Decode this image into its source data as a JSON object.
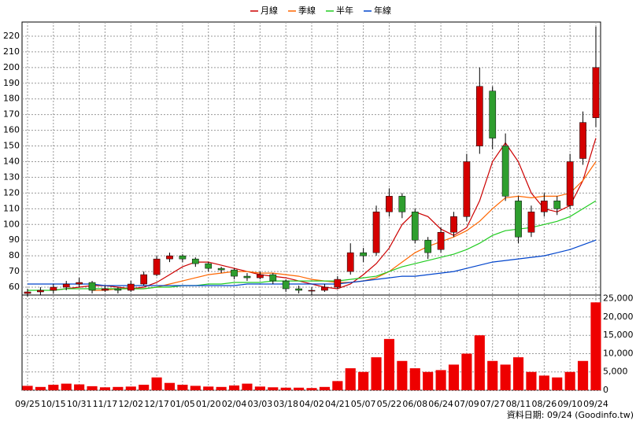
{
  "chart_data": [
    {
      "type": "candlestick",
      "categories": [
        "09/25",
        null,
        "10/15",
        null,
        "10/31",
        null,
        "11/17",
        null,
        "12/02",
        null,
        "12/17",
        null,
        "01/05",
        null,
        "01/20",
        null,
        "02/04",
        null,
        "03/03",
        null,
        "03/18",
        null,
        "04/02",
        null,
        "04/21",
        null,
        "05/07",
        null,
        "05/22",
        null,
        "06/08",
        null,
        "06/24",
        null,
        "07/09",
        null,
        "07/27",
        null,
        "08/11",
        null,
        "08/26",
        null,
        "09/10",
        null,
        "09/24"
      ],
      "open": [
        56,
        57,
        58,
        60,
        62,
        63,
        58,
        59,
        58,
        62,
        68,
        78,
        80,
        78,
        75,
        72,
        71,
        67,
        66,
        68,
        64,
        59,
        58,
        58,
        60,
        70,
        82,
        82,
        108,
        118,
        108,
        90,
        84,
        95,
        105,
        150,
        185,
        150,
        115,
        95,
        108,
        115,
        112,
        142,
        168
      ],
      "high": [
        59,
        60,
        62,
        64,
        66,
        64,
        61,
        60,
        64,
        70,
        80,
        82,
        81,
        79,
        76,
        73,
        72,
        69,
        70,
        69,
        65,
        61,
        60,
        62,
        67,
        88,
        85,
        112,
        123,
        120,
        110,
        92,
        98,
        108,
        145,
        200,
        188,
        158,
        118,
        112,
        120,
        118,
        145,
        172,
        226
      ],
      "low": [
        54,
        55,
        56,
        58,
        60,
        56,
        57,
        56,
        57,
        61,
        67,
        76,
        76,
        73,
        70,
        69,
        65,
        64,
        65,
        62,
        57,
        56,
        55,
        57,
        59,
        68,
        76,
        80,
        105,
        104,
        88,
        78,
        82,
        92,
        102,
        145,
        148,
        115,
        88,
        92,
        105,
        106,
        110,
        138,
        162
      ],
      "close": [
        57,
        58,
        60,
        62,
        63,
        58,
        59,
        58,
        62,
        68,
        78,
        80,
        78,
        75,
        72,
        71,
        67,
        66,
        68,
        64,
        59,
        58,
        58,
        60,
        65,
        82,
        80,
        108,
        118,
        108,
        90,
        82,
        95,
        105,
        140,
        188,
        155,
        118,
        92,
        108,
        115,
        110,
        140,
        165,
        200
      ],
      "up_color": "#d40000",
      "down_color": "#2e9e2e",
      "series": [
        {
          "name": "月線",
          "color": "#cc0000",
          "values": [
            null,
            null,
            58,
            59,
            60,
            61,
            61,
            60,
            59,
            60,
            63,
            68,
            73,
            76,
            76,
            74,
            72,
            70,
            68,
            67,
            66,
            64,
            62,
            60,
            59,
            62,
            68,
            75,
            85,
            100,
            108,
            105,
            97,
            93,
            98,
            115,
            140,
            152,
            140,
            120,
            110,
            108,
            112,
            128,
            155
          ]
        },
        {
          "name": "季線",
          "color": "#ff6600",
          "values": [
            null,
            null,
            null,
            null,
            null,
            58,
            58,
            59,
            59,
            59,
            60,
            62,
            64,
            66,
            68,
            69,
            70,
            70,
            69,
            69,
            68,
            67,
            65,
            64,
            63,
            63,
            64,
            66,
            70,
            76,
            82,
            86,
            89,
            92,
            96,
            102,
            110,
            117,
            118,
            117,
            118,
            118,
            120,
            128,
            140
          ]
        },
        {
          "name": "半年",
          "color": "#22cc22",
          "values": [
            58,
            58,
            58,
            59,
            59,
            59,
            59,
            59,
            59,
            59,
            60,
            60,
            61,
            61,
            62,
            62,
            63,
            63,
            63,
            64,
            64,
            64,
            64,
            64,
            64,
            65,
            66,
            67,
            70,
            73,
            75,
            77,
            79,
            81,
            84,
            88,
            93,
            96,
            97,
            98,
            100,
            102,
            105,
            110,
            115
          ]
        },
        {
          "name": "年線",
          "color": "#0044cc",
          "values": [
            62,
            62,
            62,
            62,
            62,
            62,
            61,
            61,
            61,
            61,
            61,
            61,
            61,
            61,
            61,
            61,
            61,
            62,
            62,
            62,
            62,
            62,
            62,
            62,
            62,
            63,
            64,
            65,
            66,
            67,
            67,
            68,
            69,
            70,
            72,
            74,
            76,
            77,
            78,
            79,
            80,
            82,
            84,
            87,
            90
          ]
        }
      ],
      "ylim": [
        55,
        229
      ],
      "yticks": [
        60,
        70,
        80,
        90,
        100,
        110,
        120,
        130,
        140,
        150,
        160,
        170,
        180,
        190,
        200,
        210,
        220
      ],
      "grid": true
    },
    {
      "type": "bar",
      "color": "#ee0000",
      "values": [
        1200,
        900,
        1500,
        1800,
        1600,
        1100,
        800,
        900,
        1000,
        1500,
        3500,
        2000,
        1500,
        1200,
        1000,
        900,
        1300,
        1800,
        1000,
        800,
        700,
        700,
        600,
        900,
        2500,
        6000,
        5000,
        9000,
        14000,
        8000,
        6000,
        5000,
        5500,
        7000,
        10000,
        15000,
        8000,
        7000,
        9000,
        5000,
        4000,
        3500,
        5000,
        8000,
        24000
      ],
      "ylim": [
        0,
        26000
      ],
      "yticks": [
        0,
        {
          "value": 5000,
          "label": "5,000"
        },
        {
          "value": 10000,
          "label": "10,000"
        },
        {
          "value": 15000,
          "label": "15,000"
        },
        {
          "value": 20000,
          "label": "20,000"
        },
        {
          "value": 25000,
          "label": "25,000"
        }
      ]
    }
  ],
  "footer": "資料日期: 09/24 (Goodinfo.tw)"
}
